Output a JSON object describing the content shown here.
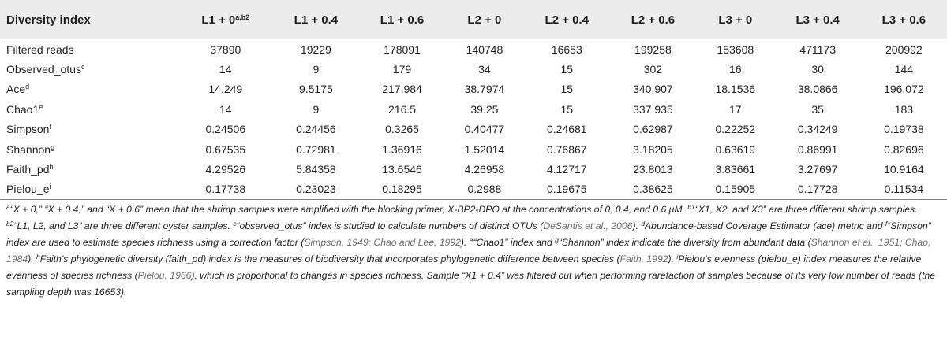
{
  "table": {
    "header_label": "Diversity index",
    "columns": [
      {
        "label": "L1 + 0",
        "sup": "a,b2"
      },
      {
        "label": "L1 + 0.4",
        "sup": ""
      },
      {
        "label": "L1 + 0.6",
        "sup": ""
      },
      {
        "label": "L2 + 0",
        "sup": ""
      },
      {
        "label": "L2 + 0.4",
        "sup": ""
      },
      {
        "label": "L2 + 0.6",
        "sup": ""
      },
      {
        "label": "L3 + 0",
        "sup": ""
      },
      {
        "label": "L3 + 0.4",
        "sup": ""
      },
      {
        "label": "L3 + 0.6",
        "sup": ""
      }
    ],
    "rows": [
      {
        "label": "Filtered reads",
        "sup": "",
        "values": [
          "37890",
          "19229",
          "178091",
          "140748",
          "16653",
          "199258",
          "153608",
          "471173",
          "200992"
        ]
      },
      {
        "label": "Observed_otus",
        "sup": "c",
        "values": [
          "14",
          "9",
          "179",
          "34",
          "15",
          "302",
          "16",
          "30",
          "144"
        ]
      },
      {
        "label": "Ace",
        "sup": "d",
        "values": [
          "14.249",
          "9.5175",
          "217.984",
          "38.7974",
          "15",
          "340.907",
          "18.1536",
          "38.0866",
          "196.072"
        ]
      },
      {
        "label": "Chao1",
        "sup": "e",
        "values": [
          "14",
          "9",
          "216.5",
          "39.25",
          "15",
          "337.935",
          "17",
          "35",
          "183"
        ]
      },
      {
        "label": "Simpson",
        "sup": "f",
        "values": [
          "0.24506",
          "0.24456",
          "0.3265",
          "0.40477",
          "0.24681",
          "0.62987",
          "0.22252",
          "0.34249",
          "0.19738"
        ]
      },
      {
        "label": "Shannon",
        "sup": "g",
        "values": [
          "0.67535",
          "0.72981",
          "1.36916",
          "1.52014",
          "0.76867",
          "3.18205",
          "0.63619",
          "0.86991",
          "0.82696"
        ]
      },
      {
        "label": "Faith_pd",
        "sup": "h",
        "values": [
          "4.29526",
          "5.84358",
          "13.6546",
          "4.26958",
          "4.12717",
          "23.8013",
          "3.83661",
          "3.27697",
          "10.9164"
        ]
      },
      {
        "label": "Pielou_e",
        "sup": "i",
        "values": [
          "0.17738",
          "0.23023",
          "0.18295",
          "0.2988",
          "0.19675",
          "0.38625",
          "0.15905",
          "0.17728",
          "0.11534"
        ]
      }
    ]
  },
  "footnotes": [
    {
      "sup": "a",
      "text": "“X + 0,” “X + 0.4,” and “X + 0.6” mean that the shrimp samples were amplified with the blocking primer, X-BP2-DPO at the concentrations of 0, 0.4, and 0.6 μM. "
    },
    {
      "sup": "b1",
      "text": "“X1, X2, and X3” are three different shrimp samples. "
    },
    {
      "sup": "b2",
      "text": "“L1, L2, and L3” are three different oyster samples. "
    },
    {
      "sup": "c",
      "text": "“observed_otus” index is studied to calculate numbers of distinct OTUs (",
      "cite": "DeSantis et al., 2006",
      "after": "). "
    },
    {
      "sup": "d",
      "text": "Abundance-based Coverage Estimator (ace) metric and "
    },
    {
      "sup": "f",
      "text": "“Simpson” index are used to estimate species richness using a correction factor (",
      "cite": "Simpson, 1949; Chao and Lee, 1992",
      "after": "). "
    },
    {
      "sup": "e",
      "text": "“Chao1” index and "
    },
    {
      "sup": "g",
      "text": "“Shannon” index indicate the diversity from abundant data (",
      "cite": "Shannon et al., 1951; Chao, 1984",
      "after": "). "
    },
    {
      "sup": "h",
      "text": "Faith’s phylogenetic diversity (faith_pd) index is the measures of biodiversity that incorporates phylogenetic difference between species (",
      "cite": "Faith, 1992",
      "after": "). "
    },
    {
      "sup": "i",
      "text": "Pielou’s evenness (pielou_e) index measures the relative evenness of species richness (",
      "cite": "Pielou, 1966",
      "after": "), which is proportional to changes in species richness. Sample “X1 + 0.4” was filtered out when performing rarefaction of samples because of its very low number of reads (the sampling depth was 16653)."
    }
  ]
}
